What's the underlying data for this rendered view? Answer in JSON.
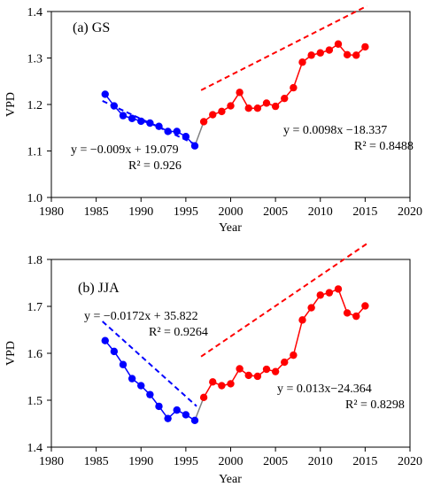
{
  "chart_data": [
    {
      "type": "line",
      "panel_label": "(a) GS",
      "xlabel": "Year",
      "ylabel": "VPD",
      "xlim": [
        1980,
        2020
      ],
      "ylim": [
        1.0,
        1.4
      ],
      "xticks": [
        "1980",
        "1985",
        "1990",
        "1995",
        "2000",
        "2005",
        "2010",
        "2015",
        "2020"
      ],
      "yticks": [
        "1.0",
        "1.1",
        "1.2",
        "1.3",
        "1.4"
      ],
      "series": [
        {
          "color": "#0000ff",
          "x": [
            1986,
            1987,
            1988,
            1989,
            1990,
            1991,
            1992,
            1993,
            1994,
            1995,
            1996
          ],
          "values": [
            1.222,
            1.197,
            1.176,
            1.17,
            1.164,
            1.16,
            1.153,
            1.142,
            1.142,
            1.131,
            1.111
          ]
        },
        {
          "color": "#ff0000",
          "x": [
            1997,
            1998,
            1999,
            2000,
            2001,
            2002,
            2003,
            2004,
            2005,
            2006,
            2007,
            2008,
            2009,
            2010,
            2011,
            2012,
            2013,
            2014,
            2015
          ],
          "values": [
            1.163,
            1.178,
            1.185,
            1.197,
            1.226,
            1.192,
            1.192,
            1.203,
            1.196,
            1.213,
            1.236,
            1.291,
            1.306,
            1.311,
            1.317,
            1.33,
            1.307,
            1.306,
            1.324
          ]
        }
      ],
      "connector": {
        "color": "#808080",
        "x": [
          1996,
          1997
        ],
        "values": [
          1.111,
          1.163
        ]
      },
      "trendlines": [
        {
          "color": "#0000ff",
          "slope": -0.009,
          "intercept": 19.079,
          "x": [
            1986,
            1996
          ]
        },
        {
          "color": "#ff0000",
          "slope": 0.0098,
          "intercept": -18.337,
          "x": [
            1997,
            2015
          ]
        }
      ],
      "annotations": [
        {
          "equation": "y = −0.009x + 19.079",
          "r2": "R² = 0.926"
        },
        {
          "equation": "y = 0.0098x −18.337",
          "r2": "R² = 0.8488"
        }
      ]
    },
    {
      "type": "line",
      "panel_label": "(b) JJA",
      "xlabel": "Year",
      "ylabel": "VPD",
      "xlim": [
        1980,
        2020
      ],
      "ylim": [
        1.4,
        1.8
      ],
      "xticks": [
        "1980",
        "1985",
        "1990",
        "1995",
        "2000",
        "2005",
        "2010",
        "2015",
        "2020"
      ],
      "yticks": [
        "1.4",
        "1.5",
        "1.6",
        "1.7",
        "1.8"
      ],
      "series": [
        {
          "color": "#0000ff",
          "x": [
            1986,
            1987,
            1988,
            1989,
            1990,
            1991,
            1992,
            1993,
            1994,
            1995,
            1996
          ],
          "values": [
            1.627,
            1.604,
            1.576,
            1.546,
            1.531,
            1.512,
            1.487,
            1.461,
            1.479,
            1.469,
            1.457
          ]
        },
        {
          "color": "#ff0000",
          "x": [
            1997,
            1998,
            1999,
            2000,
            2001,
            2002,
            2003,
            2004,
            2005,
            2006,
            2007,
            2008,
            2009,
            2010,
            2011,
            2012,
            2013,
            2014,
            2015
          ],
          "values": [
            1.506,
            1.539,
            1.531,
            1.535,
            1.567,
            1.553,
            1.551,
            1.566,
            1.561,
            1.581,
            1.596,
            1.671,
            1.697,
            1.724,
            1.729,
            1.737,
            1.686,
            1.679,
            1.701
          ]
        }
      ],
      "connector": {
        "color": "#808080",
        "x": [
          1996,
          1997
        ],
        "values": [
          1.457,
          1.506
        ]
      },
      "trendlines": [
        {
          "color": "#0000ff",
          "slope": -0.0172,
          "intercept": 35.822,
          "x": [
            1986,
            1996
          ]
        },
        {
          "color": "#ff0000",
          "slope": 0.013,
          "intercept": -24.364,
          "x": [
            1997,
            2015
          ]
        }
      ],
      "annotations": [
        {
          "equation": "y = −0.0172x + 35.822",
          "r2": "R² = 0.9264"
        },
        {
          "equation": "y = 0.013x−24.364",
          "r2": "R² = 0.8298"
        }
      ]
    }
  ]
}
